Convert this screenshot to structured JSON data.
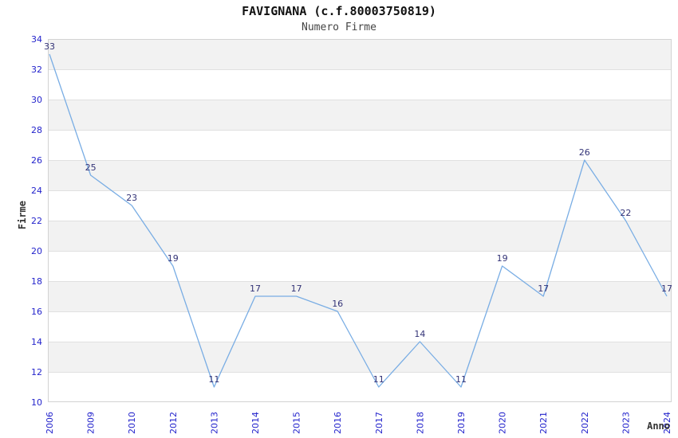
{
  "chart_data": {
    "type": "line",
    "title": "FAVIGNANA (c.f.80003750819)",
    "subtitle": "Numero Firme",
    "xlabel": "Anno",
    "ylabel": "Firme",
    "categories": [
      "2006",
      "2009",
      "2010",
      "2012",
      "2013",
      "2014",
      "2015",
      "2016",
      "2017",
      "2018",
      "2019",
      "2020",
      "2021",
      "2022",
      "2023",
      "2024"
    ],
    "values": [
      33,
      25,
      23,
      19,
      11,
      17,
      17,
      16,
      11,
      14,
      11,
      19,
      17,
      26,
      22,
      17
    ],
    "ylim": [
      10,
      34
    ],
    "ytick_step": 2,
    "grid": "alternating-horizontal-bands",
    "legend_position": "none",
    "point_labels_visible": true,
    "colors": {
      "line": "#79ade4",
      "tick_label": "#2424cc",
      "point_label": "#333377",
      "band": "#f2f2f2",
      "gridline": "#e0e0e0",
      "plot_border": "#d3d3d3",
      "title": "#111111",
      "subtitle": "#444444",
      "axis_label": "#333333"
    }
  }
}
